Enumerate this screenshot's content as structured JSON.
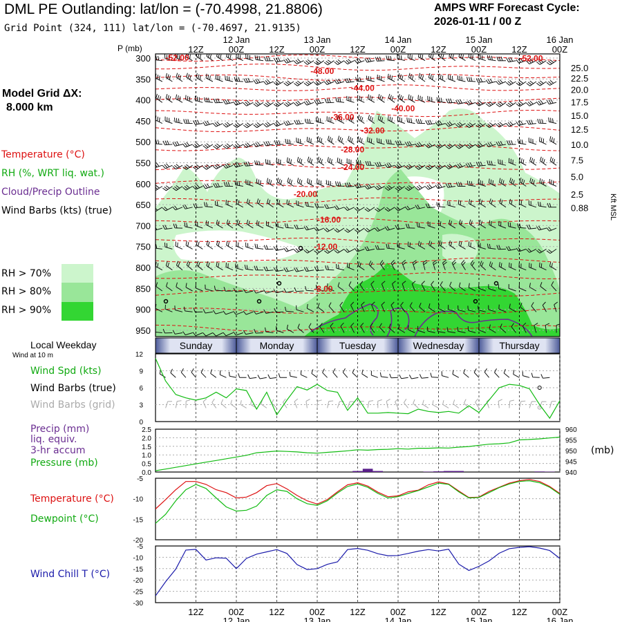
{
  "header": {
    "title": "DML PE Outlanding:  lat/lon = (-70.4998, 21.8806)",
    "grid_point": "Grid Point (324, 111) lat/lon = (-70.4697, 21.9135)",
    "cycle_line1": "AMPS WRF Forecast Cycle:",
    "cycle_line2": "2026-01-11 / 00  Z",
    "model_grid_line1": "Model Grid ΔX:",
    "model_grid_line2": "8.000 km"
  },
  "legend": {
    "temperature": "Temperature (°C)",
    "rh": "RH (%, WRT liq. wat.)",
    "cloud": "Cloud/Precip Outline",
    "wind_barbs": "Wind Barbs (kts) (true)",
    "rh70": "RH > 70%",
    "rh80": "RH > 80%",
    "rh90": "RH > 90%",
    "local_weekday": "Local Weekday",
    "wind_at_10m": "Wind at 10 m"
  },
  "colors": {
    "temperature": "#dd1111",
    "dewpoint": "#11bb11",
    "wind_chill": "#1a1aaa",
    "precip": "#5a1f8a",
    "rh70": "#ccf5cc",
    "rh80": "#99e699",
    "rh90": "#33d633"
  },
  "side_labels": {
    "wind_spd": "Wind Spd (kts)",
    "wind_barbs_true": "Wind Barbs (true)",
    "wind_barbs_grid": "Wind Barbs (grid)",
    "precip1": "Precip (mm)",
    "precip2": "liq. equiv.",
    "precip3": "3-hr accum",
    "pressure": "Pressure (mb)",
    "temperature": "Temperature (°C)",
    "dewpoint": "Dewpoint (°C)",
    "wind_chill": "Wind Chill T (°C)",
    "pressure_unit": "(mb)"
  },
  "chart_data": {
    "type": "meteogram",
    "time_axis": {
      "hours": [
        12,
        24,
        36,
        48,
        60,
        72,
        84,
        96,
        108,
        120
      ],
      "labels": [
        "12Z",
        "00Z",
        "12Z",
        "00Z",
        "12Z",
        "00Z",
        "12Z",
        "00Z",
        "12Z",
        "00Z"
      ],
      "date_labels": [
        {
          "hour": 24,
          "text": "12 Jan"
        },
        {
          "hour": 48,
          "text": "13 Jan"
        },
        {
          "hour": 72,
          "text": "14 Jan"
        },
        {
          "hour": 96,
          "text": "15 Jan"
        },
        {
          "hour": 120,
          "text": "16 Jan"
        }
      ],
      "range": [
        0,
        120
      ]
    },
    "weekdays": [
      "Sunday",
      "Monday",
      "Tuesday",
      "Wednesday",
      "Thursday"
    ],
    "cross_section": {
      "p_label": "P (mb)",
      "pressure_ticks": [
        300,
        350,
        400,
        450,
        500,
        550,
        600,
        650,
        700,
        750,
        800,
        850,
        900,
        950
      ],
      "p_range": [
        290,
        965
      ],
      "height_label": "Kft MSL",
      "height_ticks": [
        {
          "p": 323,
          "label": "25.0"
        },
        {
          "p": 348,
          "label": "22.5"
        },
        {
          "p": 375,
          "label": "20.0"
        },
        {
          "p": 405,
          "label": "17.5"
        },
        {
          "p": 437,
          "label": "15.0"
        },
        {
          "p": 470,
          "label": "12.5"
        },
        {
          "p": 506,
          "label": "10.0"
        },
        {
          "p": 543,
          "label": "7.5"
        },
        {
          "p": 583,
          "label": "5.0"
        },
        {
          "p": 625,
          "label": "2.5"
        },
        {
          "p": 657,
          "label": "0.88"
        }
      ],
      "isotherm_labels": [
        {
          "t": 3,
          "p": 306,
          "text": "-52.00"
        },
        {
          "t": 108,
          "p": 307,
          "text": "-52.00"
        },
        {
          "t": 46,
          "p": 338,
          "text": "-48.00"
        },
        {
          "t": 58,
          "p": 378,
          "text": "-44.00"
        },
        {
          "t": 70,
          "p": 427,
          "text": "-40.00"
        },
        {
          "t": 52,
          "p": 448,
          "text": "-36.00"
        },
        {
          "t": 61,
          "p": 480,
          "text": "-32.00"
        },
        {
          "t": 55,
          "p": 525,
          "text": "-28.00"
        },
        {
          "t": 55,
          "p": 567,
          "text": "-24.00"
        },
        {
          "t": 41,
          "p": 632,
          "text": "-20.00"
        },
        {
          "t": 48,
          "p": 693,
          "text": "-16.00"
        },
        {
          "t": 47,
          "p": 757,
          "text": "-12.00"
        },
        {
          "t": 47,
          "p": 858,
          "text": "-8.00"
        }
      ]
    },
    "wind_panel": {
      "ylim": [
        0,
        12
      ],
      "yticks": [
        0,
        3,
        6,
        9,
        12
      ],
      "hours": [
        0,
        3,
        6,
        9,
        12,
        15,
        18,
        21,
        24,
        27,
        30,
        33,
        36,
        39,
        42,
        45,
        48,
        51,
        54,
        57,
        60,
        63,
        66,
        69,
        72,
        75,
        78,
        81,
        84,
        87,
        90,
        93,
        96,
        99,
        102,
        105,
        108,
        111,
        114,
        117,
        120
      ],
      "wind_speed": [
        11.2,
        7.2,
        4.8,
        4.2,
        3.8,
        4.2,
        5.2,
        4.2,
        5.8,
        5.5,
        2.2,
        5.2,
        1.2,
        3.8,
        6.2,
        5.6,
        6.6,
        5.5,
        5.2,
        2.0,
        4.2,
        1.5,
        1.5,
        1.6,
        1.5,
        1.4,
        2.2,
        1.8,
        1.6,
        1.8,
        1.5,
        2.8,
        1.6,
        3.8,
        6.0,
        6.6,
        6.4,
        5.8,
        3.0,
        0.6,
        3.7
      ]
    },
    "precip_panel": {
      "precip_ylim": [
        0,
        2.5
      ],
      "precip_yticks": [
        "0.0",
        "0.5",
        "1.0",
        "1.5",
        "2.0",
        "2.5"
      ],
      "pressure_ylim": [
        940,
        960
      ],
      "pressure_yticks": [
        940,
        945,
        950,
        955,
        960
      ],
      "hours": [
        0,
        3,
        6,
        9,
        12,
        15,
        18,
        21,
        24,
        27,
        30,
        33,
        36,
        39,
        42,
        45,
        48,
        51,
        54,
        57,
        60,
        63,
        66,
        69,
        72,
        75,
        78,
        81,
        84,
        87,
        90,
        93,
        96,
        99,
        102,
        105,
        108,
        111,
        114,
        117,
        120
      ],
      "pressure": [
        940.6,
        941.4,
        942.2,
        943.0,
        943.8,
        944.6,
        945.4,
        946.2,
        947.0,
        947.8,
        949.0,
        949.4,
        949.8,
        949.6,
        949.4,
        949.0,
        948.8,
        949.2,
        949.5,
        949.9,
        950.4,
        950.2,
        950.5,
        950.6,
        950.9,
        950.7,
        951.1,
        951.1,
        951.3,
        951.2,
        951.6,
        951.9,
        952.5,
        953.0,
        953.2,
        953.6,
        955.0,
        955.2,
        955.5,
        955.9,
        956.3
      ],
      "precip": [
        {
          "hour": 60,
          "value": 0.06
        },
        {
          "hour": 63,
          "value": 0.19
        },
        {
          "hour": 66,
          "value": 0.06
        },
        {
          "hour": 81,
          "value": 0.02
        },
        {
          "hour": 84,
          "value": 0.04
        },
        {
          "hour": 87,
          "value": 0.06
        },
        {
          "hour": 90,
          "value": 0.06
        },
        {
          "hour": 114,
          "value": 0.03
        },
        {
          "hour": 117,
          "value": 0.02
        }
      ]
    },
    "temp_panel": {
      "ylim": [
        -20,
        -5
      ],
      "yticks": [
        -5,
        -10,
        -15,
        -20
      ],
      "hours": [
        0,
        3,
        6,
        9,
        12,
        15,
        18,
        21,
        24,
        27,
        30,
        33,
        36,
        39,
        42,
        45,
        48,
        51,
        54,
        57,
        60,
        63,
        66,
        69,
        72,
        75,
        78,
        81,
        84,
        87,
        90,
        93,
        96,
        99,
        102,
        105,
        108,
        111,
        114,
        117,
        120
      ],
      "temperature": [
        -12.5,
        -10.2,
        -7.8,
        -5.8,
        -5.8,
        -6.5,
        -7.8,
        -8.5,
        -9.8,
        -9.6,
        -8.5,
        -6.8,
        -6.3,
        -7.6,
        -9.2,
        -10.5,
        -11.3,
        -10.2,
        -8.3,
        -6.6,
        -6.1,
        -6.9,
        -8.4,
        -9.5,
        -9.3,
        -8.3,
        -7.9,
        -6.6,
        -5.9,
        -6.4,
        -8.1,
        -9.7,
        -9.6,
        -8.2,
        -7.2,
        -6.2,
        -5.6,
        -5.3,
        -5.8,
        -7.0,
        -8.7
      ],
      "dewpoint": [
        -16.0,
        -13.8,
        -10.5,
        -7.8,
        -6.5,
        -7.5,
        -9.8,
        -12.0,
        -13.0,
        -12.8,
        -11.8,
        -9.2,
        -7.8,
        -8.2,
        -10.0,
        -11.2,
        -11.6,
        -10.5,
        -8.6,
        -7.0,
        -6.4,
        -7.2,
        -8.7,
        -9.8,
        -9.5,
        -8.7,
        -8.0,
        -7.1,
        -6.2,
        -6.5,
        -8.3,
        -9.8,
        -9.7,
        -8.5,
        -7.3,
        -6.4,
        -5.8,
        -5.6,
        -6.1,
        -7.2,
        -8.9
      ]
    },
    "windchill_panel": {
      "ylim": [
        -30,
        -5
      ],
      "yticks": [
        -5,
        -10,
        -15,
        -20,
        -25,
        -30
      ],
      "hours": [
        0,
        3,
        6,
        9,
        12,
        15,
        18,
        21,
        24,
        27,
        30,
        33,
        36,
        39,
        42,
        45,
        48,
        51,
        54,
        57,
        60,
        63,
        66,
        69,
        72,
        75,
        78,
        81,
        84,
        87,
        90,
        93,
        96,
        99,
        102,
        105,
        108,
        111,
        114,
        117,
        120
      ],
      "wind_chill": [
        -27.0,
        -20.8,
        -15.2,
        -6.8,
        -6.5,
        -11.2,
        -10.2,
        -10.4,
        -15.0,
        -10.5,
        -8.6,
        -7.6,
        -6.6,
        -8.3,
        -13.2,
        -15.4,
        -15.0,
        -13.1,
        -12.0,
        -6.6,
        -6.1,
        -6.9,
        -8.4,
        -9.3,
        -9.2,
        -8.3,
        -7.3,
        -6.6,
        -7.2,
        -6.4,
        -13.0,
        -15.8,
        -14.0,
        -11.6,
        -8.2,
        -6.2,
        -5.6,
        -5.3,
        -5.9,
        -7.0,
        -10.5
      ]
    }
  }
}
